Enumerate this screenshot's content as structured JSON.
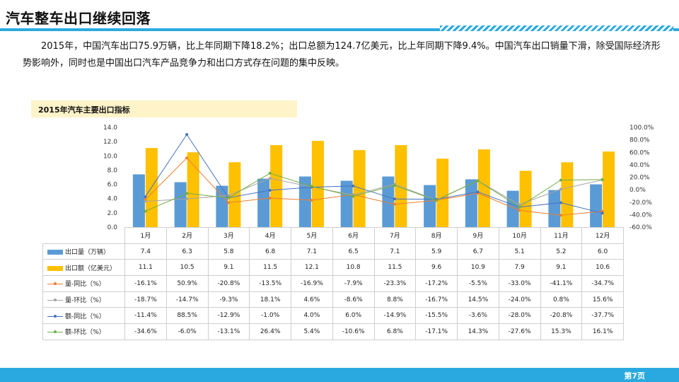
{
  "slide": {
    "title": "汽车整车出口继续回落",
    "paragraph": "2015年，中国汽车出口75.9万辆，比上年同期下降18.2%；出口总额为124.7亿美元，比上年同期下降9.4%。中国汽车出口销量下滑，除受国际经济形势影响外，同时也是中国出口汽车产品竞争力和出口方式存在问题的集中反映。",
    "page_number": "第7页"
  },
  "colors": {
    "accent": "#2AA9E0",
    "bar_volume": "#5B9BD5",
    "bar_value": "#FFC000",
    "line_vol_yoy": "#ED7D31",
    "line_vol_mom": "#A5A5A5",
    "line_val_yoy": "#4472C4",
    "line_val_mom": "#70AD47"
  },
  "chart_data": {
    "type": "bar",
    "title": "2015年汽车主要出口指标",
    "categories": [
      "1月",
      "2月",
      "3月",
      "4月",
      "5月",
      "6月",
      "7月",
      "8月",
      "9月",
      "10月",
      "11月",
      "12月"
    ],
    "y_left": {
      "ylim": [
        0,
        14
      ],
      "ticks": [
        "0.0",
        "2.0",
        "4.0",
        "6.0",
        "8.0",
        "10.0",
        "12.0",
        "14.0"
      ]
    },
    "y_right": {
      "ylim": [
        -60,
        100
      ],
      "ticks": [
        "-60.0%",
        "-40.0%",
        "-20.0%",
        "0.0%",
        "20.0%",
        "40.0%",
        "60.0%",
        "80.0%",
        "100.0%"
      ]
    },
    "series": [
      {
        "name": "出口量（万辆）",
        "type": "bar",
        "axis": "left",
        "color": "#5B9BD5",
        "values": [
          7.4,
          6.3,
          5.8,
          6.8,
          7.1,
          6.5,
          7.1,
          5.9,
          6.7,
          5.1,
          5.2,
          6.0
        ],
        "labels": [
          "7.4",
          "6.3",
          "5.8",
          "6.8",
          "7.1",
          "6.5",
          "7.1",
          "5.9",
          "6.7",
          "5.1",
          "5.2",
          "6.0"
        ]
      },
      {
        "name": "出口额（亿美元）",
        "type": "bar",
        "axis": "left",
        "color": "#FFC000",
        "values": [
          11.1,
          10.5,
          9.1,
          11.5,
          12.1,
          10.8,
          11.5,
          9.6,
          10.9,
          7.9,
          9.1,
          10.6
        ],
        "labels": [
          "11.1",
          "10.5",
          "9.1",
          "11.5",
          "12.1",
          "10.8",
          "11.5",
          "9.6",
          "10.9",
          "7.9",
          "9.1",
          "10.6"
        ]
      },
      {
        "name": "量-同比（%）",
        "type": "line",
        "axis": "right",
        "color": "#ED7D31",
        "values": [
          -16.1,
          50.9,
          -20.8,
          -13.5,
          -16.9,
          -7.9,
          -23.3,
          -17.2,
          -5.5,
          -33.0,
          -41.1,
          -34.7
        ],
        "labels": [
          "-16.1%",
          "50.9%",
          "-20.8%",
          "-13.5%",
          "-16.9%",
          "-7.9%",
          "-23.3%",
          "-17.2%",
          "-5.5%",
          "-33.0%",
          "-41.1%",
          "-34.7%"
        ]
      },
      {
        "name": "量-环比（%）",
        "type": "line",
        "axis": "right",
        "color": "#A5A5A5",
        "values": [
          -18.7,
          -14.7,
          -9.3,
          18.1,
          4.6,
          -8.6,
          8.8,
          -16.7,
          14.5,
          -24.0,
          0.8,
          15.6
        ],
        "labels": [
          "-18.7%",
          "-14.7%",
          "-9.3%",
          "18.1%",
          "4.6%",
          "-8.6%",
          "8.8%",
          "-16.7%",
          "14.5%",
          "-24.0%",
          "0.8%",
          "15.6%"
        ]
      },
      {
        "name": "额-同比（%）",
        "type": "line",
        "axis": "right",
        "color": "#4472C4",
        "values": [
          -11.4,
          88.5,
          -12.9,
          -1.0,
          4.0,
          6.0,
          -14.9,
          -15.5,
          -3.6,
          -28.0,
          -20.8,
          -37.7
        ],
        "labels": [
          "-11.4%",
          "88.5%",
          "-12.9%",
          "-1.0%",
          "4.0%",
          "6.0%",
          "-14.9%",
          "-15.5%",
          "-3.6%",
          "-28.0%",
          "-20.8%",
          "-37.7%"
        ]
      },
      {
        "name": "额-环比（%）",
        "type": "line",
        "axis": "right",
        "color": "#70AD47",
        "values": [
          -34.6,
          -6.0,
          -13.1,
          26.4,
          5.4,
          -10.6,
          6.8,
          -17.1,
          14.3,
          -27.6,
          15.3,
          16.1
        ],
        "labels": [
          "-34.6%",
          "-6.0%",
          "-13.1%",
          "26.4%",
          "5.4%",
          "-10.6%",
          "6.8%",
          "-17.1%",
          "14.3%",
          "-27.6%",
          "15.3%",
          "16.1%"
        ]
      }
    ],
    "legend": "table-left",
    "grid": false
  }
}
